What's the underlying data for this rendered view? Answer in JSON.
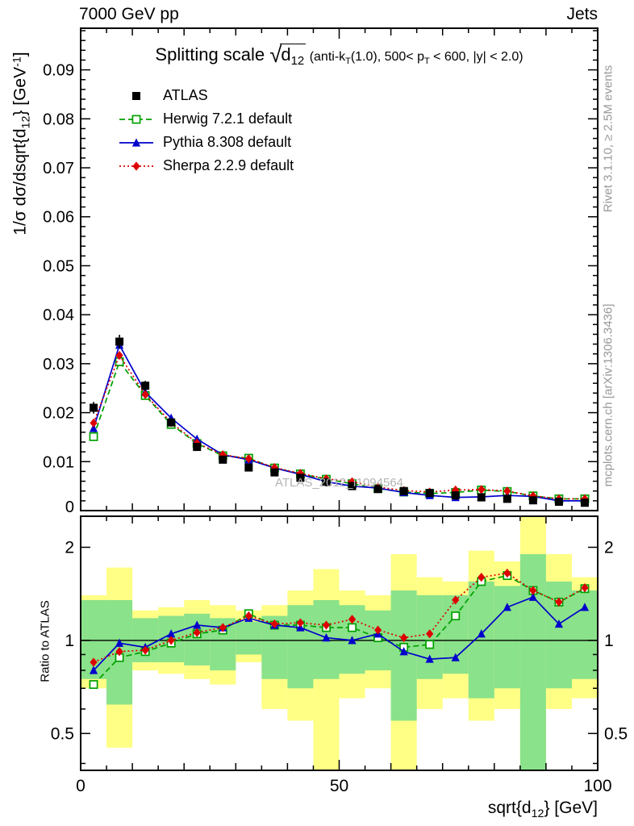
{
  "header": {
    "left": "7000 GeV pp",
    "right": "Jets"
  },
  "title": {
    "prefix": "Splitting scale ",
    "sqrt": "√",
    "radicand": "d",
    "radicand_sub": "12",
    "cond_1": " (anti-k",
    "cond_sub1": "T",
    "cond_2": "(1.0), 500< p",
    "cond_sub2": "T",
    "cond_3": " < 600, |y| < 2.0)"
  },
  "ylabel": {
    "p1": "1/σ dσ/dsqrt{d",
    "sub": "12",
    "p2": "} [GeV",
    "sup": "-1",
    "p3": "]"
  },
  "xlabel": {
    "p1": "sqrt{d",
    "sub": "12",
    "p2": "} [GeV]"
  },
  "ratio_label": "Ratio to ATLAS",
  "side_captions": {
    "top": "Rivet 3.1.10, ≥ 2.5M events",
    "bottom": "mcplots.cern.ch [arXiv:1306.3436]"
  },
  "watermark": "ATLAS_2012_I1094564",
  "chart_data": {
    "type": "line",
    "title": "Splitting scale sqrt(d12) (anti-kT(1.0), 500< pT < 600, |y| < 2.0)",
    "xlabel": "sqrt{d12} [GeV]",
    "ylabel": "1/σ dσ/dsqrt{d12} [GeV^-1]",
    "ratio_ylabel": "Ratio to ATLAS",
    "xlim": [
      0,
      100
    ],
    "main_ylim": [
      0,
      0.0985
    ],
    "ratio_ylim": [
      0.38,
      2.52
    ],
    "ratio_scale": "log",
    "grid": false,
    "legend_position": "top-left",
    "x_major_ticks": [
      0,
      50,
      100
    ],
    "main_y_ticks": [
      0,
      0.01,
      0.02,
      0.03,
      0.04,
      0.05,
      0.06,
      0.07,
      0.08,
      0.09
    ],
    "ratio_y_ticks": [
      0.5,
      1,
      2
    ],
    "ratio_y_minor_ticks": [
      0.4,
      0.6,
      0.7,
      0.8,
      0.9
    ],
    "bin_edges": [
      0,
      5,
      10,
      15,
      20,
      25,
      30,
      35,
      40,
      45,
      50,
      55,
      60,
      65,
      70,
      75,
      80,
      85,
      90,
      95,
      100
    ],
    "x": [
      2.5,
      7.5,
      12.5,
      17.5,
      22.5,
      27.5,
      32.5,
      37.5,
      42.5,
      47.5,
      52.5,
      57.5,
      62.5,
      67.5,
      72.5,
      77.5,
      82.5,
      87.5,
      92.5,
      97.5
    ],
    "series": [
      {
        "key": "atlas",
        "name": "ATLAS",
        "color": "#000000",
        "marker": "square",
        "line": "none",
        "values": [
          0.021,
          0.0345,
          0.0255,
          0.018,
          0.013,
          0.0104,
          0.0088,
          0.0078,
          0.0067,
          0.0058,
          0.005,
          0.0044,
          0.004,
          0.0036,
          0.0031,
          0.0027,
          0.0024,
          0.0021,
          0.0018,
          0.0016
        ],
        "errors": [
          0.0012,
          0.0014,
          0.001,
          0.0008,
          0.0006,
          0.0005,
          0.0004,
          0.0004,
          0.0003,
          0.0003,
          0.0003,
          0.0002,
          0.0002,
          0.0002,
          0.0002,
          0.0002,
          0.0002,
          0.0002,
          0.0002,
          0.0002
        ]
      },
      {
        "key": "herwig",
        "name": "Herwig 7.2.1 default",
        "color": "#00a000",
        "marker": "square-open",
        "line": "dashed",
        "values": [
          0.0151,
          0.0304,
          0.0235,
          0.0176,
          0.0137,
          0.0112,
          0.0107,
          0.0087,
          0.0075,
          0.0064,
          0.0055,
          0.0045,
          0.0038,
          0.0035,
          0.0037,
          0.0042,
          0.0039,
          0.003,
          0.0024,
          0.0024
        ],
        "ratio": [
          0.72,
          0.88,
          0.92,
          0.98,
          1.05,
          1.08,
          1.22,
          1.12,
          1.12,
          1.1,
          1.1,
          1.02,
          0.95,
          0.97,
          1.2,
          1.55,
          1.62,
          1.45,
          1.33,
          1.47
        ]
      },
      {
        "key": "pythia",
        "name": "Pythia 8.308 default",
        "color": "#0000cc",
        "marker": "triangle",
        "line": "solid",
        "values": [
          0.0168,
          0.0338,
          0.0242,
          0.0189,
          0.0146,
          0.0114,
          0.0104,
          0.0087,
          0.0074,
          0.0059,
          0.005,
          0.0046,
          0.0037,
          0.0031,
          0.0027,
          0.0028,
          0.0031,
          0.0029,
          0.002,
          0.002
        ],
        "ratio": [
          0.8,
          0.98,
          0.95,
          1.05,
          1.12,
          1.1,
          1.18,
          1.12,
          1.1,
          1.02,
          1.0,
          1.05,
          0.92,
          0.87,
          0.88,
          1.05,
          1.28,
          1.38,
          1.13,
          1.28
        ]
      },
      {
        "key": "sherpa",
        "name": "Sherpa 2.2.9 default",
        "color": "#dd0000",
        "marker": "diamond",
        "line": "dotted",
        "values": [
          0.0179,
          0.0317,
          0.0237,
          0.018,
          0.0138,
          0.0114,
          0.0106,
          0.0088,
          0.0076,
          0.0065,
          0.0059,
          0.0048,
          0.0041,
          0.0038,
          0.0042,
          0.0043,
          0.004,
          0.003,
          0.0024,
          0.0024
        ],
        "ratio": [
          0.85,
          0.92,
          0.93,
          1.0,
          1.06,
          1.1,
          1.2,
          1.13,
          1.14,
          1.12,
          1.17,
          1.08,
          1.02,
          1.05,
          1.35,
          1.6,
          1.65,
          1.45,
          1.33,
          1.48
        ]
      }
    ],
    "bands": {
      "yellow_color": "#ffff85",
      "green_color": "#8ae28a",
      "yellow_lo": [
        0.7,
        0.45,
        0.8,
        0.78,
        0.75,
        0.72,
        0.85,
        0.6,
        0.55,
        0.38,
        0.65,
        0.7,
        0.38,
        0.6,
        0.65,
        0.55,
        0.6,
        0.38,
        0.6,
        0.65
      ],
      "yellow_hi": [
        1.4,
        1.72,
        1.25,
        1.28,
        1.35,
        1.3,
        1.25,
        1.3,
        1.45,
        1.7,
        1.45,
        1.4,
        1.9,
        1.6,
        1.55,
        1.95,
        1.8,
        2.52,
        1.9,
        1.6
      ],
      "green_lo": [
        0.75,
        0.62,
        0.85,
        0.85,
        0.83,
        0.8,
        0.9,
        0.75,
        0.7,
        0.75,
        0.78,
        0.8,
        0.55,
        0.75,
        0.78,
        0.65,
        0.7,
        0.38,
        0.7,
        0.75
      ],
      "green_hi": [
        1.35,
        1.35,
        1.18,
        1.2,
        1.22,
        1.18,
        1.15,
        1.2,
        1.3,
        1.35,
        1.3,
        1.25,
        1.45,
        1.4,
        1.4,
        1.55,
        1.5,
        1.9,
        1.55,
        1.45
      ]
    }
  }
}
